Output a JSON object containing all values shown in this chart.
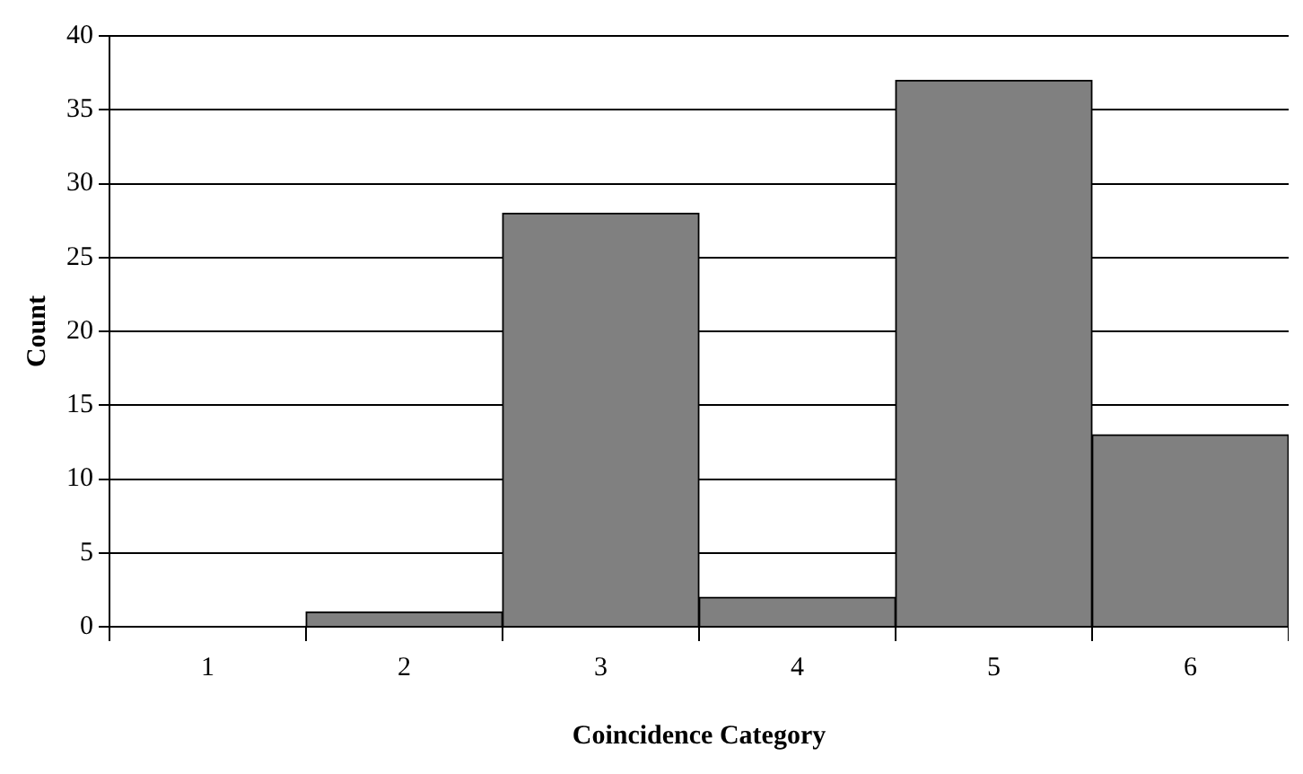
{
  "chart_data": {
    "type": "bar",
    "xlabel": "Coincidence Category",
    "ylabel": "Count",
    "categories": [
      "1",
      "2",
      "3",
      "4",
      "5",
      "6"
    ],
    "values": [
      0,
      1,
      28,
      2,
      37,
      13
    ],
    "color": "#808080",
    "ylim": [
      0,
      40
    ],
    "yticks": [
      0,
      5,
      10,
      15,
      20,
      25,
      30,
      35,
      40
    ],
    "grid": "y",
    "legend": false
  }
}
